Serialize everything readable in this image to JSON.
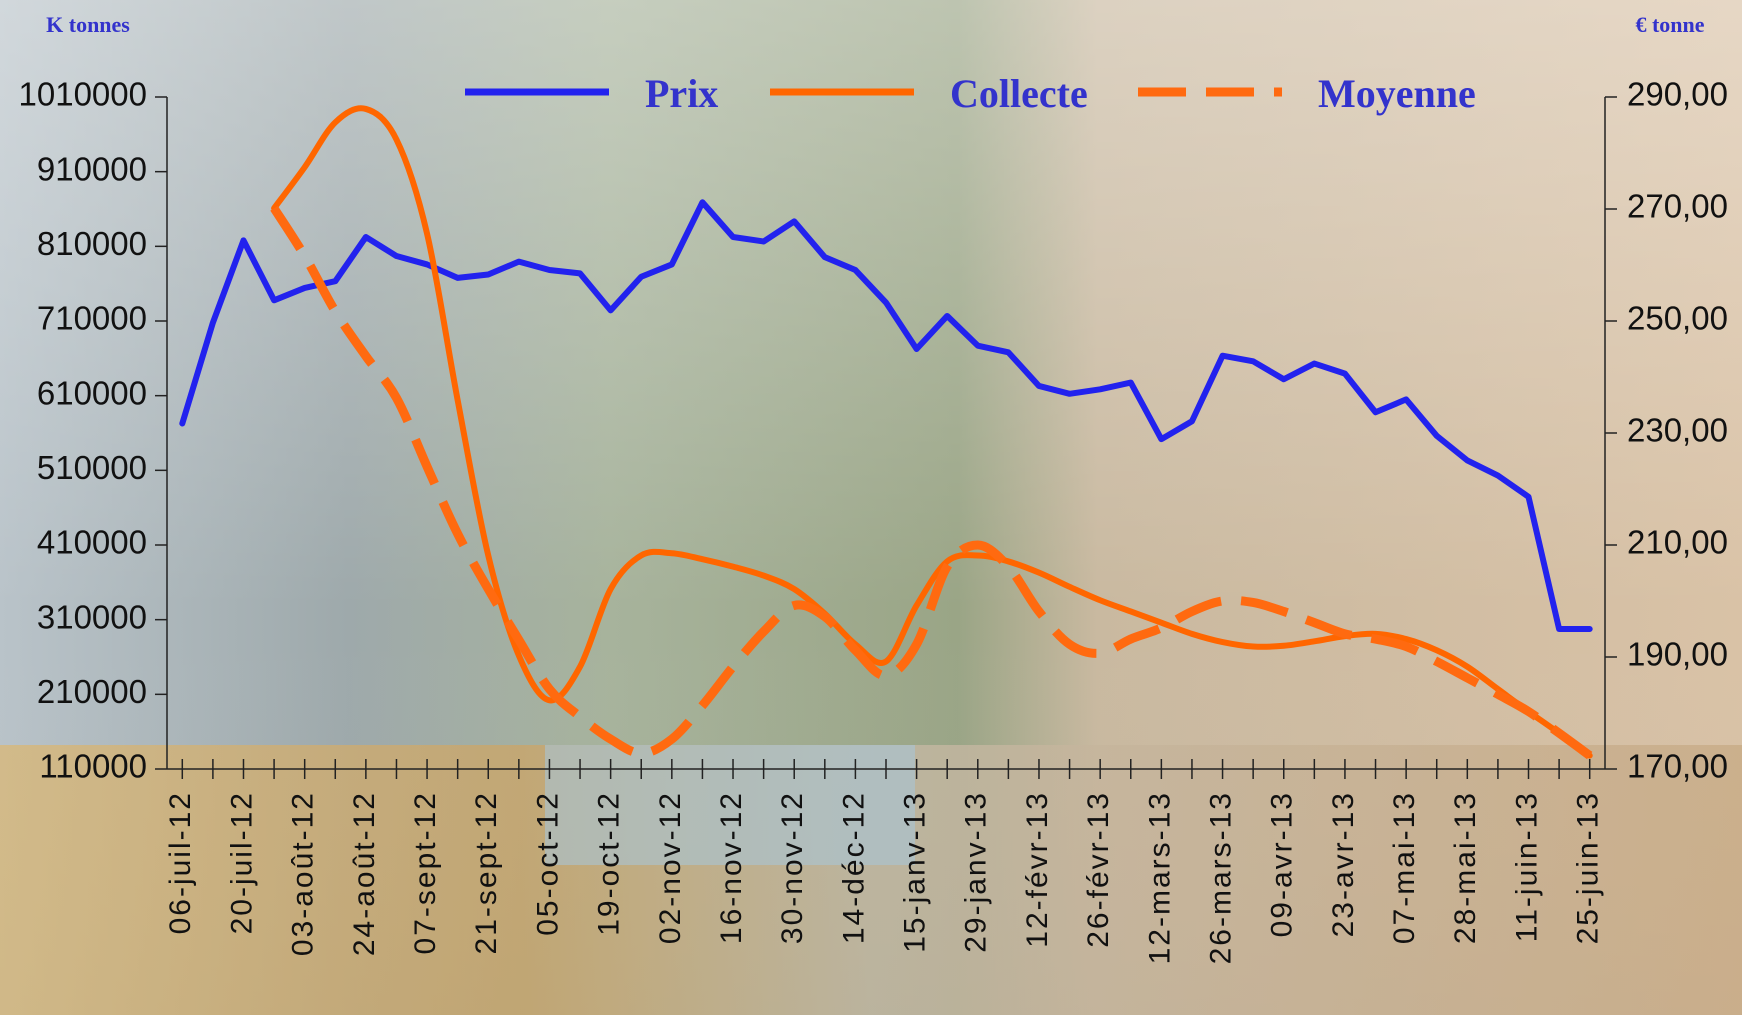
{
  "chart_data": {
    "type": "line",
    "y_label": "K tonnes",
    "y2_label": "€ tonne",
    "legend": "top",
    "categories": [
      "06-juil-12",
      null,
      "20-juil-12",
      null,
      "03-août-12",
      null,
      "24-août-12",
      null,
      "07-sept-12",
      null,
      "21-sept-12",
      null,
      "05-oct-12",
      null,
      "19-oct-12",
      null,
      "02-nov-12",
      null,
      "16-nov-12",
      null,
      "30-nov-12",
      null,
      "14-déc-12",
      null,
      "15-janv-13",
      null,
      "29-janv-13",
      null,
      "12-févr-13",
      null,
      "26-févr-13",
      null,
      "12-mars-13",
      null,
      "26-mars-13",
      null,
      "09-avr-13",
      null,
      "23-avr-13",
      null,
      "07-mai-13",
      null,
      "28-mai-13",
      null,
      "11-juin-13",
      null,
      "25-juin-13"
    ],
    "ylim": [
      110000,
      1010000
    ],
    "yticks": [
      110000,
      210000,
      310000,
      410000,
      510000,
      610000,
      710000,
      810000,
      910000,
      1010000
    ],
    "y2lim": [
      170,
      290
    ],
    "y2ticks": [
      {
        "value": 170,
        "label": "170,00"
      },
      {
        "value": 190,
        "label": "190,00"
      },
      {
        "value": 210,
        "label": "210,00"
      },
      {
        "value": 230,
        "label": "230,00"
      },
      {
        "value": 250,
        "label": "250,00"
      },
      {
        "value": 270,
        "label": "270,00"
      },
      {
        "value": 290,
        "label": "290,00"
      }
    ],
    "series": [
      {
        "name": "Prix",
        "color": "#2222ee",
        "axis": "y2",
        "style": "solid",
        "smooth": false,
        "values": [
          231.7,
          249.7,
          264.4,
          253.7,
          255.9,
          257.1,
          265.0,
          261.6,
          260.1,
          257.7,
          258.3,
          260.6,
          259.1,
          258.5,
          251.9,
          257.9,
          260.1,
          271.2,
          265.0,
          264.2,
          267.8,
          261.4,
          259.1,
          253.3,
          245.0,
          250.9,
          245.6,
          244.4,
          238.4,
          237.0,
          237.8,
          239.0,
          228.9,
          232.1,
          243.8,
          242.8,
          239.6,
          242.4,
          240.6,
          233.7,
          236.0,
          229.5,
          225.1,
          222.4,
          218.6,
          195.0,
          195.0
        ]
      },
      {
        "name": "Collecte",
        "color": "#ff6600",
        "style": "solid",
        "smooth": true,
        "values": [
          null,
          null,
          null,
          861000,
          916000,
          976000,
          994000,
          953000,
          827000,
          604000,
          396000,
          262000,
          202000,
          247000,
          351000,
          396000,
          399000,
          391000,
          381000,
          369000,
          351000,
          318000,
          277000,
          254000,
          329000,
          388000,
          396000,
          388000,
          373000,
          354000,
          336000,
          321000,
          306000,
          291000,
          280000,
          274000,
          275000,
          281000,
          288000,
          291000,
          284000,
          269000,
          247000,
          217000,
          187000,
          158000,
          128000
        ]
      },
      {
        "name": "Moyenne",
        "color": "#ff6a10",
        "style": "dashed",
        "smooth": true,
        "values": [
          null,
          null,
          null,
          861000,
          797000,
          723000,
          663000,
          607000,
          515000,
          425000,
          351000,
          283000,
          217000,
          180000,
          150000,
          131000,
          150000,
          195000,
          247000,
          294000,
          329000,
          314000,
          269000,
          235000,
          277000,
          381000,
          410000,
          381000,
          321000,
          277000,
          265000,
          284000,
          299000,
          321000,
          335000,
          333000,
          321000,
          306000,
          291000,
          284000,
          274000,
          254000,
          232000,
          210000,
          187000,
          158000,
          128000
        ]
      }
    ]
  }
}
